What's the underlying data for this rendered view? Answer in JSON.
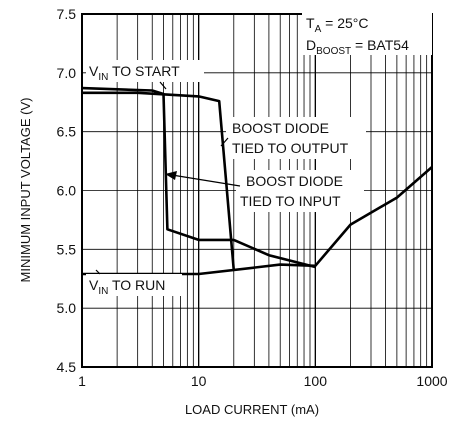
{
  "chart_data": {
    "type": "line",
    "xlabel": "LOAD CURRENT (mA)",
    "ylabel": "MINIMUM INPUT VOLTAGE (V)",
    "xscale": "log",
    "xlim": [
      1,
      1000
    ],
    "ylim": [
      4.5,
      7.5
    ],
    "grid": true,
    "x_ticks": [
      {
        "value": 1,
        "label": "1"
      },
      {
        "value": 10,
        "label": "10"
      },
      {
        "value": 100,
        "label": "100"
      },
      {
        "value": 1000,
        "label": "1000"
      }
    ],
    "y_ticks": [
      {
        "value": 4.5,
        "label": "4.5"
      },
      {
        "value": 5.0,
        "label": "5.0"
      },
      {
        "value": 5.5,
        "label": "5.5"
      },
      {
        "value": 6.0,
        "label": "6.0"
      },
      {
        "value": 6.5,
        "label": "6.5"
      },
      {
        "value": 7.0,
        "label": "7.0"
      },
      {
        "value": 7.5,
        "label": "7.5"
      }
    ],
    "series": [
      {
        "x": [
          1,
          4,
          5,
          5.4,
          10,
          20
        ],
        "y": [
          6.87,
          6.85,
          6.82,
          5.67,
          5.58,
          5.58
        ],
        "color": "#000000"
      },
      {
        "x": [
          1,
          3,
          10,
          15,
          20
        ],
        "y": [
          6.83,
          6.83,
          6.8,
          6.76,
          5.32
        ],
        "color": "#000000"
      },
      {
        "x": [
          1,
          10,
          50,
          100,
          200,
          500,
          1000
        ],
        "y": [
          5.29,
          5.29,
          5.37,
          5.36,
          5.71,
          5.94,
          6.2
        ],
        "color": "#000000"
      },
      {
        "x": [
          20,
          40,
          100
        ],
        "y": [
          5.58,
          5.45,
          5.35
        ],
        "color": "#000000"
      }
    ],
    "annotations": {
      "conditions": {
        "ta": "T",
        "ta_sub": "A",
        "ta_rest": " = 25°C",
        "d": "D",
        "d_sub": "BOOST",
        "d_rest": " = BAT54"
      },
      "vin_start": {
        "main": "V",
        "sub": "IN",
        "rest": " TO START"
      },
      "vin_run": {
        "main": "V",
        "sub": "IN",
        "rest": " TO RUN"
      },
      "boost_output": [
        "BOOST DIODE",
        "TIED TO OUTPUT"
      ],
      "boost_input": [
        "BOOST DIODE",
        "TIED TO INPUT"
      ]
    }
  }
}
